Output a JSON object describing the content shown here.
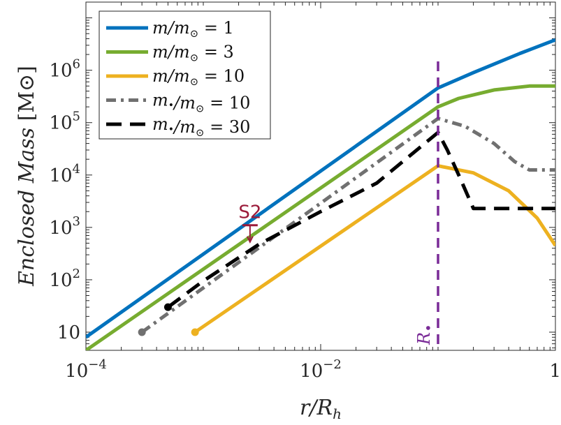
{
  "chart_data": {
    "type": "line",
    "title": "",
    "xlabel": "r/R_h",
    "ylabel": "Enclosed Mass [M_⊙]",
    "x_scale": "log",
    "y_scale": "log",
    "xlim": [
      0.0001,
      1
    ],
    "ylim": [
      4.5,
      20000000
    ],
    "x_ticks": [
      {
        "value": 0.0001,
        "base": "10",
        "exp": "−4"
      },
      {
        "value": 0.01,
        "base": "10",
        "exp": "−2"
      },
      {
        "value": 1,
        "base": "1",
        "exp": ""
      }
    ],
    "y_ticks": [
      {
        "value": 10,
        "base": "10",
        "exp": ""
      },
      {
        "value": 100,
        "base": "10",
        "exp": "2"
      },
      {
        "value": 1000,
        "base": "10",
        "exp": "3"
      },
      {
        "value": 10000,
        "base": "10",
        "exp": "4"
      },
      {
        "value": 100000,
        "base": "10",
        "exp": "5"
      },
      {
        "value": 1000000,
        "base": "10",
        "exp": "6"
      }
    ],
    "series": [
      {
        "name": "m/m_⊙ = 1",
        "legend": {
          "ratio": "m/m",
          "sub": "⊙",
          "eq": " = 1"
        },
        "color": "#0072BD",
        "dash": "solid",
        "points": [
          [
            0.0001,
            8
          ],
          [
            0.1,
            460000
          ],
          [
            0.2,
            900000
          ],
          [
            0.5,
            2100000
          ],
          [
            1,
            3800000
          ]
        ]
      },
      {
        "name": "m/m_⊙ = 3",
        "legend": {
          "ratio": "m/m",
          "sub": "⊙",
          "eq": " = 3"
        },
        "color": "#77AC30",
        "dash": "solid",
        "points": [
          [
            0.0001,
            4.5
          ],
          [
            0.1,
            200000
          ],
          [
            0.15,
            290000
          ],
          [
            0.3,
            420000
          ],
          [
            0.6,
            500000
          ],
          [
            1,
            500000
          ]
        ]
      },
      {
        "name": "m/m_⊙ = 10",
        "legend": {
          "ratio": "m/m",
          "sub": "⊙",
          "eq": " = 10"
        },
        "color": "#EDB120",
        "dash": "solid",
        "start_marker": true,
        "points": [
          [
            0.00085,
            10
          ],
          [
            0.1,
            15000
          ],
          [
            0.2,
            11000
          ],
          [
            0.4,
            5000
          ],
          [
            0.7,
            1500
          ],
          [
            1,
            450
          ]
        ]
      },
      {
        "name": "m_•/m_⊙ = 10",
        "legend": {
          "ratio": "m/m",
          "sub": "⊙",
          "eq": " = 10",
          "bullet": true
        },
        "color": "#707070",
        "dash": "dashdot",
        "start_marker": true,
        "points": [
          [
            0.0003,
            10
          ],
          [
            0.1,
            120000
          ],
          [
            0.17,
            85000
          ],
          [
            0.3,
            40000
          ],
          [
            0.45,
            18000
          ],
          [
            0.6,
            12500
          ],
          [
            1,
            12500
          ]
        ]
      },
      {
        "name": "m_•/m_⊙ = 30",
        "legend": {
          "ratio": "m/m",
          "sub": "⊙",
          "eq": " = 30",
          "bullet": true
        },
        "color": "#000000",
        "dash": "dashed",
        "start_marker": true,
        "points": [
          [
            0.0005,
            30
          ],
          [
            0.001,
            95
          ],
          [
            0.003,
            480
          ],
          [
            0.01,
            2000
          ],
          [
            0.03,
            7000
          ],
          [
            0.1,
            65000
          ],
          [
            0.12,
            30000
          ],
          [
            0.15,
            10000
          ],
          [
            0.2,
            2300
          ],
          [
            0.5,
            2300
          ],
          [
            1,
            2300
          ]
        ]
      }
    ],
    "annotations": [
      {
        "text": "S2",
        "x": 0.0025,
        "y": 1100,
        "color": "#9b1b3a"
      },
      {
        "text": "R",
        "sub": "•",
        "x": 0.1,
        "color": "#7a2b97",
        "kind": "vertical-line"
      }
    ]
  }
}
